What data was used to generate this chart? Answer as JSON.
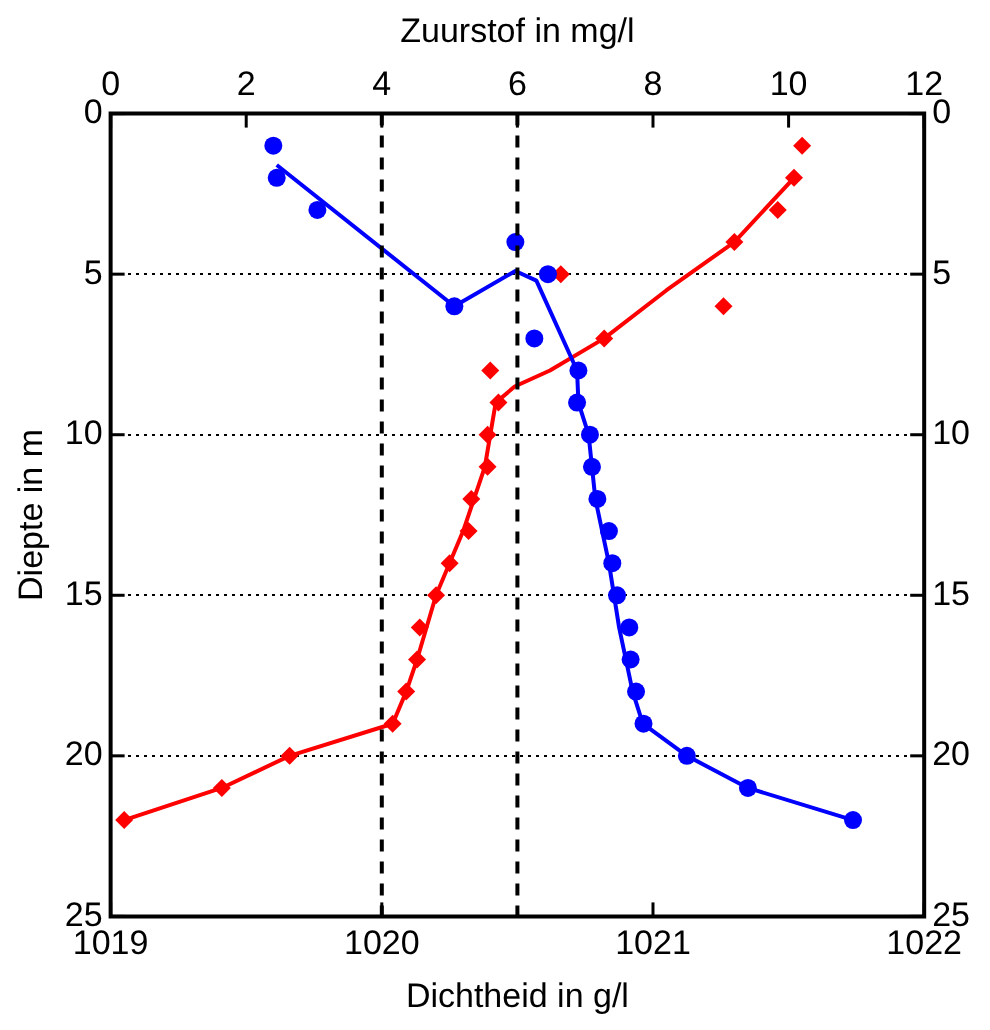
{
  "chart_data": {
    "type": "scatter",
    "xlabel": "Dichtheid in g/l",
    "x2label": "Zuurstof in mg/l",
    "ylabel": "Diepte in m",
    "xlim": [
      1019,
      1022
    ],
    "xticks": [
      1019,
      1020,
      1021,
      1022
    ],
    "x2lim": [
      0,
      12
    ],
    "x2ticks": [
      0,
      2,
      4,
      6,
      8,
      10,
      12
    ],
    "ylim": [
      25,
      0
    ],
    "yticks": [
      0,
      5,
      10,
      15,
      20,
      25
    ],
    "y2lim": [
      25,
      0
    ],
    "y2ticks": [
      0,
      5,
      10,
      15,
      20,
      25
    ],
    "grid": "y",
    "ref_lines": [
      {
        "axis": "x",
        "value": 1020,
        "color": "#000000",
        "line_style": "dashed"
      },
      {
        "axis": "x",
        "value": 1020.5,
        "color": "#000000",
        "line_style": "dashed"
      }
    ],
    "series": [
      {
        "type": "scatter",
        "axis": "x2",
        "color": "#0000ff",
        "marker": "circle",
        "x": [
          2.4,
          2.45,
          3.05,
          5.97,
          6.45,
          5.07,
          6.25,
          6.9,
          6.88,
          7.07,
          7.1,
          7.18,
          7.35,
          7.4,
          7.47,
          7.65,
          7.67,
          7.75,
          7.86,
          8.5,
          9.4,
          10.95
        ],
        "values": [
          1,
          2,
          3,
          4,
          5,
          6,
          7,
          8,
          9,
          10,
          11,
          12,
          13,
          14,
          15,
          16,
          17,
          18,
          19,
          20,
          21,
          22
        ]
      },
      {
        "type": "line",
        "axis": "x2",
        "color": "#0000ff",
        "marker": "none",
        "x": [
          2.45,
          5.07,
          5.97,
          6.28,
          6.88,
          6.9,
          7.05,
          7.15,
          7.35,
          7.5,
          7.7,
          7.85,
          8.5,
          9.4,
          10.95
        ],
        "values": [
          1.6,
          6,
          4.9,
          5.2,
          8,
          9,
          10,
          12,
          14,
          16,
          18,
          19,
          20,
          21,
          22
        ]
      },
      {
        "type": "scatter",
        "color": "#ff0000",
        "marker": "diamond",
        "x": [
          1021.55,
          1021.52,
          1021.46,
          1021.3,
          1020.66,
          1021.26,
          1020.82,
          1020.4,
          1020.43,
          1020.39,
          1020.39,
          1020.33,
          1020.32,
          1020.25,
          1020.2,
          1020.14,
          1020.13,
          1020.09,
          1020.04,
          1019.66,
          1019.41,
          1019.05
        ],
        "values": [
          1,
          2,
          3,
          4,
          5,
          6,
          7,
          8,
          9,
          10,
          11,
          12,
          13,
          14,
          15,
          16,
          17,
          18,
          19,
          20,
          21,
          22
        ]
      },
      {
        "type": "line",
        "color": "#ff0000",
        "marker": "none",
        "x": [
          1021.52,
          1021.3,
          1021.05,
          1020.82,
          1020.62,
          1020.49,
          1020.42,
          1020.38,
          1020.3,
          1020.2,
          1020.13,
          1020.09,
          1020.04,
          1019.66,
          1019.41,
          1019.05
        ],
        "values": [
          2,
          4,
          5.5,
          7,
          8,
          8.5,
          9,
          11,
          13,
          15,
          17,
          18,
          19,
          20,
          21,
          22
        ]
      }
    ]
  }
}
